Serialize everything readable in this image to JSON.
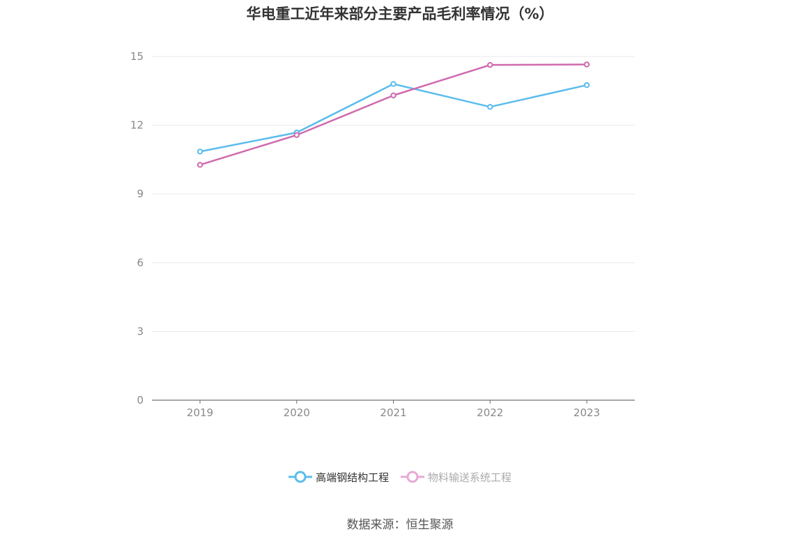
{
  "chart_data": {
    "type": "line",
    "title": "华电重工近年来部分主要产品毛利率情况（%）",
    "categories": [
      "2019",
      "2020",
      "2021",
      "2022",
      "2023"
    ],
    "series": [
      {
        "name": "高端钢结构工程",
        "color": "#5bbcec",
        "values": [
          10.85,
          11.68,
          13.8,
          12.8,
          13.75
        ]
      },
      {
        "name": "物料输送系统工程",
        "color": "#d06aae",
        "legend_color": "#e8a9d4",
        "values": [
          10.27,
          11.57,
          13.3,
          14.63,
          14.65
        ]
      }
    ],
    "ylim": [
      0,
      15
    ],
    "yticks": [
      "0",
      "3",
      "6",
      "9",
      "12",
      "15"
    ],
    "grid": true,
    "legend_position": "bottom",
    "source": "数据来源：恒生聚源"
  }
}
